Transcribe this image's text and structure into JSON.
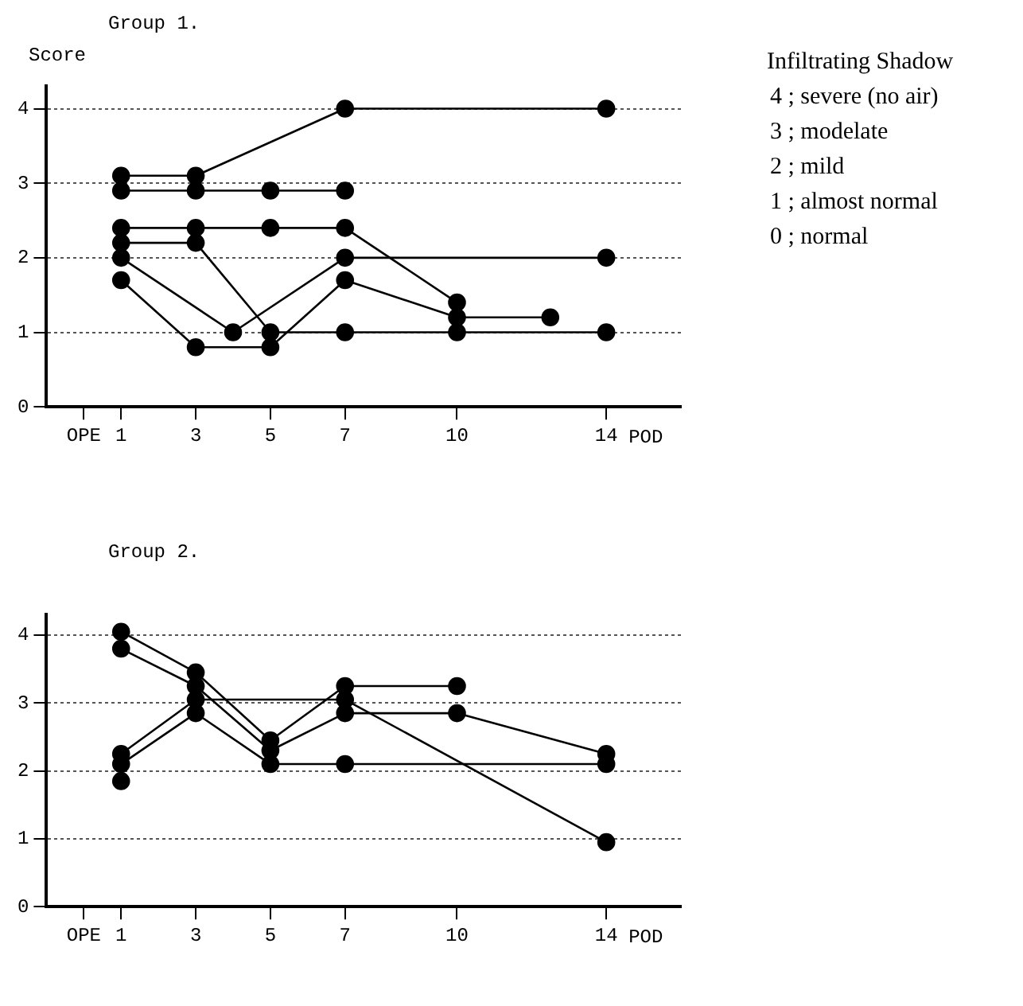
{
  "chart_data": [
    {
      "type": "line",
      "title": "Group 1.",
      "ylabel": "Score",
      "xlabel": "POD",
      "xlim": [
        -1,
        16
      ],
      "ylim": [
        0,
        4.3
      ],
      "xticks": [
        {
          "value": 0,
          "label": "OPE"
        },
        1,
        3,
        5,
        7,
        10,
        14
      ],
      "yticks": [
        0,
        1,
        2,
        3,
        4
      ],
      "grid": "y",
      "marker": "circle",
      "legend": false,
      "series": [
        {
          "color": "#000000",
          "x": [
            1,
            3,
            7,
            14
          ],
          "values": [
            3.1,
            3.1,
            4,
            4
          ]
        },
        {
          "color": "#000000",
          "x": [
            1,
            3,
            5,
            7
          ],
          "values": [
            2.9,
            2.9,
            2.9,
            2.9
          ]
        },
        {
          "color": "#000000",
          "x": [
            1,
            3,
            5,
            7,
            10
          ],
          "values": [
            2.4,
            2.4,
            2.4,
            2.4,
            1.4
          ]
        },
        {
          "color": "#000000",
          "x": [
            1,
            3,
            5,
            7,
            10,
            14
          ],
          "values": [
            2.2,
            2.2,
            1.0,
            1.0,
            1.0,
            1.0
          ]
        },
        {
          "color": "#000000",
          "x": [
            1,
            4,
            7,
            14
          ],
          "values": [
            2.0,
            1.0,
            2.0,
            2.0
          ]
        },
        {
          "color": "#000000",
          "x": [
            1,
            3,
            5,
            7,
            10,
            12.5
          ],
          "values": [
            1.7,
            0.8,
            0.8,
            1.7,
            1.2,
            1.2
          ]
        }
      ],
      "annotations": [
        "Infiltrating Shadow",
        "4 ; severe (no air)",
        "3 ; modelate",
        "2 ; mild",
        "1 ; almost normal",
        "0 ; normal"
      ]
    },
    {
      "type": "line",
      "title": "Group 2.",
      "xlabel": "POD",
      "xlim": [
        -1,
        16
      ],
      "ylim": [
        0,
        4.3
      ],
      "xticks": [
        {
          "value": 0,
          "label": "OPE"
        },
        1,
        3,
        5,
        7,
        10,
        14
      ],
      "yticks": [
        0,
        1,
        2,
        3,
        4
      ],
      "grid": "y",
      "marker": "circle",
      "legend": false,
      "series": [
        {
          "color": "#000000",
          "x": [
            1,
            3,
            5,
            7,
            10
          ],
          "values": [
            4.05,
            3.45,
            2.45,
            3.25,
            3.25
          ]
        },
        {
          "color": "#000000",
          "x": [
            1,
            3,
            5,
            7,
            10,
            14
          ],
          "values": [
            3.8,
            3.25,
            2.3,
            2.85,
            2.85,
            2.25
          ]
        },
        {
          "color": "#000000",
          "x": [
            1,
            3,
            7,
            14
          ],
          "values": [
            2.25,
            3.05,
            3.05,
            0.95
          ]
        },
        {
          "color": "#000000",
          "x": [
            1,
            3,
            5,
            7,
            14
          ],
          "values": [
            2.1,
            2.85,
            2.1,
            2.1,
            2.1
          ]
        },
        {
          "color": "#000000",
          "x": [
            1
          ],
          "values": [
            1.85
          ]
        }
      ]
    }
  ]
}
